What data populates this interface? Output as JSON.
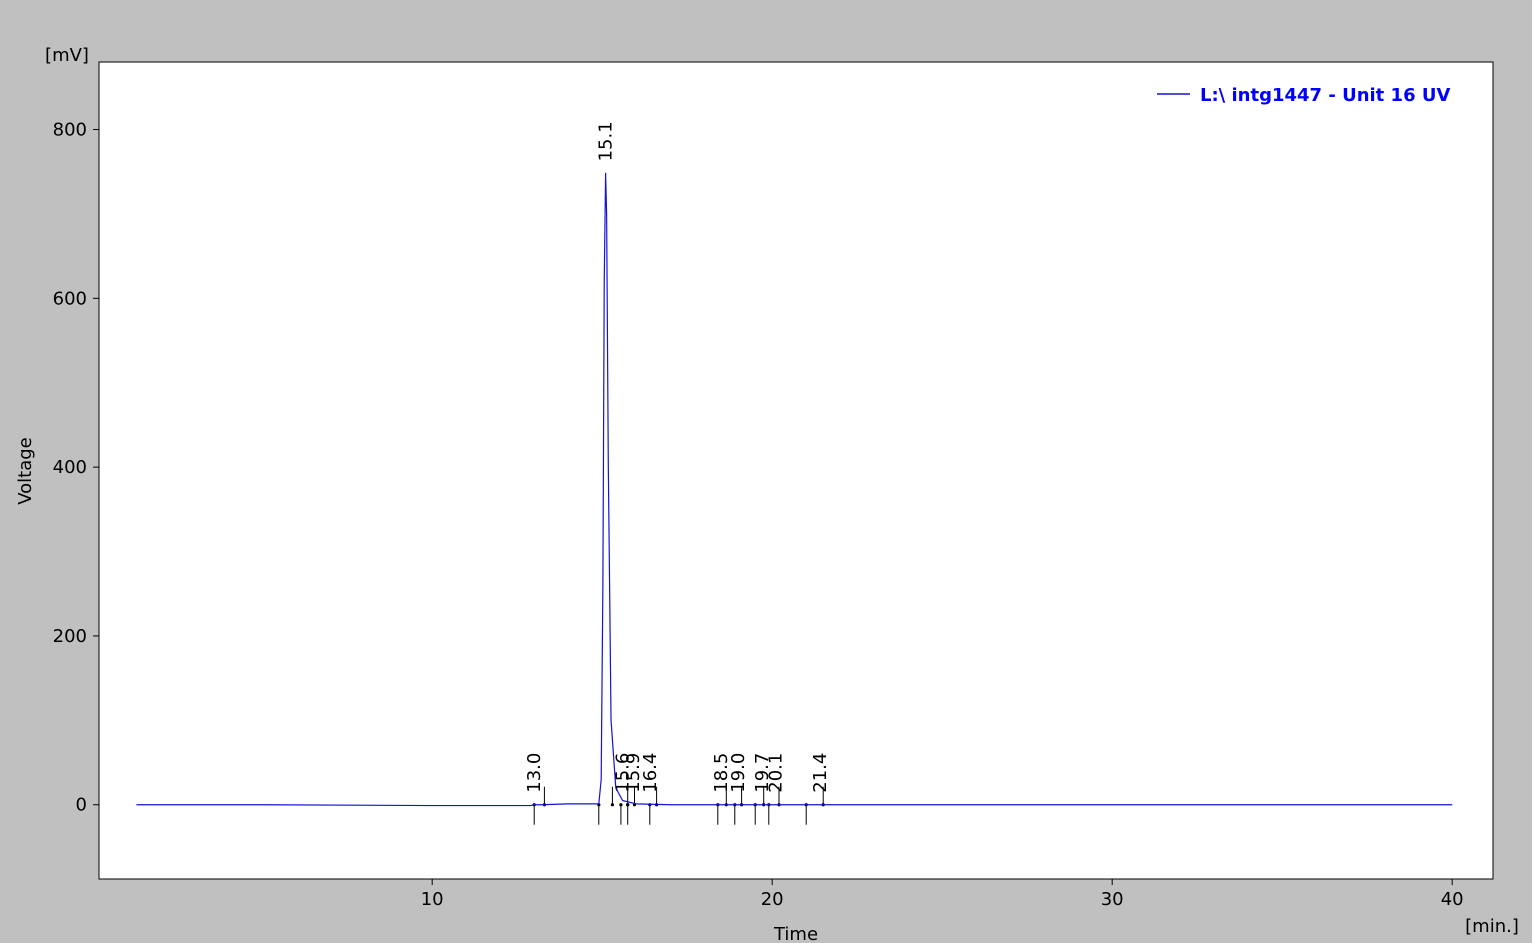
{
  "chart_data": {
    "type": "line",
    "title": "",
    "xlabel": "Time",
    "ylabel": "Voltage",
    "x_unit": "[min.]",
    "y_unit": "[mV]",
    "xlim": [
      0.2,
      41.2
    ],
    "ylim": [
      -88,
      880
    ],
    "x_ticks": [
      10,
      20,
      30,
      40
    ],
    "y_ticks": [
      0,
      200,
      400,
      600,
      800
    ],
    "grid": false,
    "legend_position": "top-right",
    "series": [
      {
        "name": "L:\\ intg1447 - Unit 16 UV",
        "color": "#1414d2",
        "x": [
          1.3,
          5,
          10,
          12.9,
          13.0,
          13.2,
          14,
          14.9,
          14.97,
          15.02,
          15.06,
          15.1,
          15.13,
          15.18,
          15.26,
          15.4,
          15.6,
          16,
          17,
          20,
          25,
          30,
          35,
          40
        ],
        "y": [
          0,
          0,
          -1,
          -1,
          0,
          0,
          1,
          1,
          30,
          260,
          620,
          748,
          700,
          400,
          100,
          20,
          5,
          1,
          0,
          0,
          0,
          0,
          0,
          0
        ]
      }
    ],
    "peaks": [
      {
        "label": "13.0",
        "start": 13.0,
        "end": 13.3
      },
      {
        "label": "15.1",
        "start": 14.9,
        "end": 15.3
      },
      {
        "label": "15.6",
        "start": 15.55,
        "end": 15.75
      },
      {
        "label": "15.9",
        "start": 15.75,
        "end": 15.95
      },
      {
        "label": "16.4",
        "start": 16.4,
        "end": 16.6
      },
      {
        "label": "18.5",
        "start": 18.4,
        "end": 18.65
      },
      {
        "label": "19.0",
        "start": 18.9,
        "end": 19.1
      },
      {
        "label": "19.7",
        "start": 19.5,
        "end": 19.75
      },
      {
        "label": "20.1",
        "start": 19.9,
        "end": 20.2
      },
      {
        "label": "21.4",
        "start": 21.0,
        "end": 21.5
      }
    ],
    "colors": {
      "frame_background": "#c0c0c0",
      "plot_background": "#ffffff",
      "trace": "#1414d2",
      "legend_text": "#0000ff",
      "axes": "#000000"
    }
  }
}
